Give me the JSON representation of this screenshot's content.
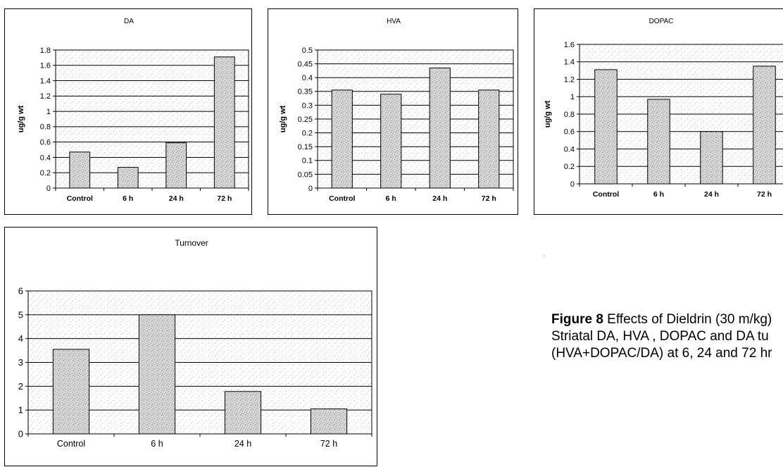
{
  "chart_data": [
    {
      "id": "da",
      "type": "bar",
      "title": "DA",
      "ylabel": "ug/g wt",
      "xlabel": "",
      "categories": [
        "Control",
        "6 h",
        "24 h",
        "72 h"
      ],
      "values": [
        0.47,
        0.27,
        0.59,
        1.71
      ],
      "ylim": [
        0,
        1.8
      ],
      "yticks": [
        "0",
        "0.2",
        "0.4",
        "0.6",
        "0.8",
        "1",
        "1.2",
        "1.4",
        "1.6",
        "1.8"
      ],
      "grid": true,
      "legend": "none"
    },
    {
      "id": "hva",
      "type": "bar",
      "title": "HVA",
      "ylabel": "ug/g wt",
      "xlabel": "",
      "categories": [
        "Control",
        "6 h",
        "24 h",
        "72 h"
      ],
      "values": [
        0.355,
        0.34,
        0.435,
        0.355
      ],
      "ylim": [
        0,
        0.5
      ],
      "yticks": [
        "0",
        "0.05",
        "0.1",
        "0.15",
        "0.2",
        "0.25",
        "0.3",
        "0.35",
        "0.4",
        "0.45",
        "0.5"
      ],
      "grid": true,
      "legend": "none"
    },
    {
      "id": "dopac",
      "type": "bar",
      "title": "DOPAC",
      "ylabel": "ug/g wt",
      "xlabel": "",
      "categories": [
        "Control",
        "6 h",
        "24 h",
        "72 h"
      ],
      "values": [
        1.31,
        0.97,
        0.6,
        1.35
      ],
      "ylim": [
        0,
        1.6
      ],
      "yticks": [
        "0",
        "0.2",
        "0.4",
        "0.6",
        "0.8",
        "1",
        "1.2",
        "1.4",
        "1.6"
      ],
      "grid": true,
      "legend": "none"
    },
    {
      "id": "turnover",
      "type": "bar",
      "title": "Turnover",
      "ylabel": "",
      "xlabel": "",
      "categories": [
        "Control",
        "6 h",
        "24 h",
        "72 h"
      ],
      "values": [
        3.55,
        5.0,
        1.78,
        1.05
      ],
      "ylim": [
        0,
        6
      ],
      "yticks": [
        "0",
        "1",
        "2",
        "3",
        "4",
        "5",
        "6"
      ],
      "grid": true,
      "legend": "none"
    }
  ],
  "caption": {
    "label": "Figure 8",
    "line1": " Effects of Dieldrin (30 m/kg)",
    "line2": "Striatal  DA, HVA , DOPAC and DA tu",
    "line3": "(HVA+DOPAC/DA) at 6, 24 and 72 hr"
  },
  "colors": {
    "fill": "#d7d7d7",
    "stipple": "#8a8a8a",
    "axis": "#000000",
    "grid": "#000000"
  }
}
